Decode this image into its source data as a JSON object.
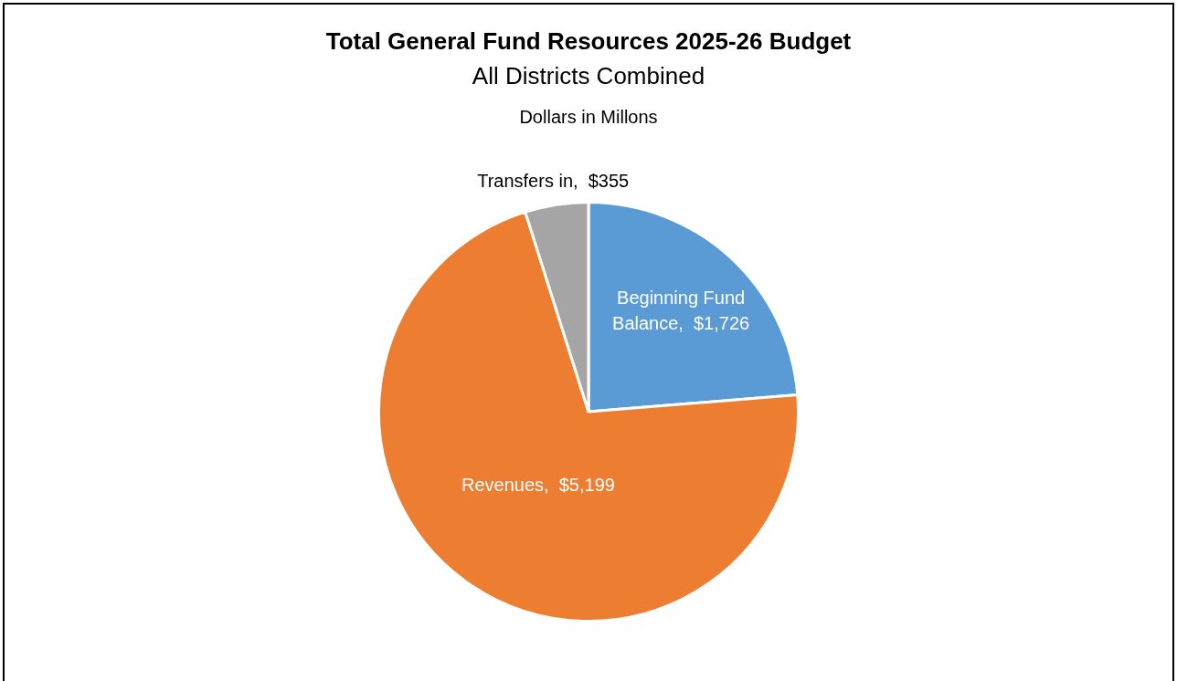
{
  "chart_data": {
    "type": "pie",
    "title": "Total General Fund Resources 2025-26 Budget",
    "subtitle": "All Districts Combined",
    "annotations": [
      "Dollars in Millons"
    ],
    "categories": [
      "Beginning Fund Balance",
      "Revenues",
      "Transfers in"
    ],
    "values": [
      1726,
      5199,
      355
    ],
    "colors": [
      "#5b9bd5",
      "#ed7d31",
      "#a5a5a5"
    ],
    "value_labels": [
      "$1,726",
      "$5,199",
      "$355"
    ],
    "legend": false
  }
}
